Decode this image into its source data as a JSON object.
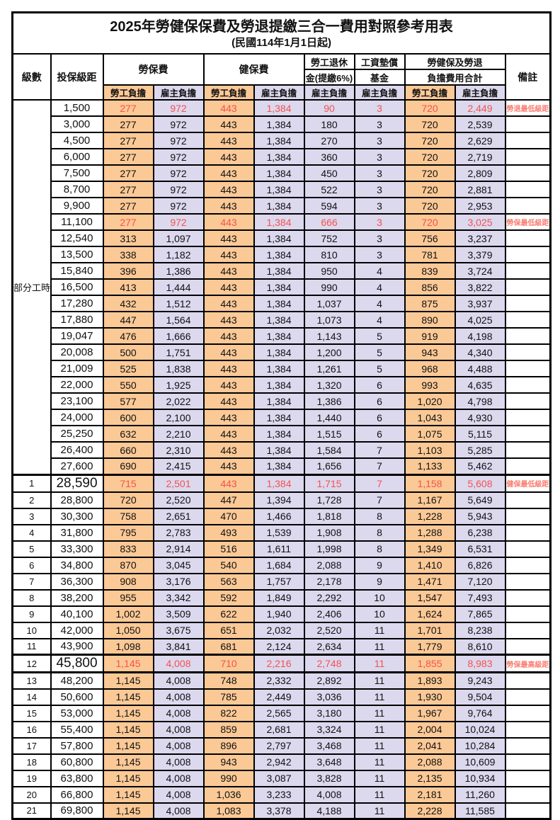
{
  "title": "2025年勞健保保費及勞退提繳三合一費用對照參考用表",
  "subtitle": "(民國114年1月1日起)",
  "colors": {
    "employee_bg": "#fbc996",
    "employer_bg": "#dcd8ee",
    "highlight_red": "#f4524d",
    "remark_red": "#f97e72"
  },
  "header": {
    "level": "級數",
    "bracket": "投保級距",
    "labor": "勞保費",
    "health": "健保費",
    "pension_line1": "勞工退休",
    "pension_line2": "金(提繳6%)",
    "wage_line1": "工資墊償",
    "wage_line2": "基金",
    "total_line1": "勞健保及勞退",
    "total_line2": "負擔費用合計",
    "employee": "勞工負擔",
    "employer": "雇主負擔",
    "remark": "備註"
  },
  "part_time": {
    "label": "部分工時",
    "span": 23
  },
  "rows": [
    {
      "level": "",
      "bracket": "1,500",
      "labor_emp": "277",
      "labor_er": "972",
      "health_emp": "443",
      "health_er": "1,384",
      "pension_er": "90",
      "wage_fund_er": "3",
      "total_emp": "720",
      "total_er": "2,449",
      "remark": "勞退最低級距",
      "highlight": true,
      "big": false,
      "sep": false,
      "sepb": false
    },
    {
      "level": "",
      "bracket": "3,000",
      "labor_emp": "277",
      "labor_er": "972",
      "health_emp": "443",
      "health_er": "1,384",
      "pension_er": "180",
      "wage_fund_er": "3",
      "total_emp": "720",
      "total_er": "2,539",
      "remark": "",
      "highlight": false,
      "big": false,
      "sep": false,
      "sepb": false
    },
    {
      "level": "",
      "bracket": "4,500",
      "labor_emp": "277",
      "labor_er": "972",
      "health_emp": "443",
      "health_er": "1,384",
      "pension_er": "270",
      "wage_fund_er": "3",
      "total_emp": "720",
      "total_er": "2,629",
      "remark": "",
      "highlight": false,
      "big": false,
      "sep": false,
      "sepb": false
    },
    {
      "level": "",
      "bracket": "6,000",
      "labor_emp": "277",
      "labor_er": "972",
      "health_emp": "443",
      "health_er": "1,384",
      "pension_er": "360",
      "wage_fund_er": "3",
      "total_emp": "720",
      "total_er": "2,719",
      "remark": "",
      "highlight": false,
      "big": false,
      "sep": false,
      "sepb": false
    },
    {
      "level": "",
      "bracket": "7,500",
      "labor_emp": "277",
      "labor_er": "972",
      "health_emp": "443",
      "health_er": "1,384",
      "pension_er": "450",
      "wage_fund_er": "3",
      "total_emp": "720",
      "total_er": "2,809",
      "remark": "",
      "highlight": false,
      "big": false,
      "sep": false,
      "sepb": false
    },
    {
      "level": "",
      "bracket": "8,700",
      "labor_emp": "277",
      "labor_er": "972",
      "health_emp": "443",
      "health_er": "1,384",
      "pension_er": "522",
      "wage_fund_er": "3",
      "total_emp": "720",
      "total_er": "2,881",
      "remark": "",
      "highlight": false,
      "big": false,
      "sep": false,
      "sepb": false
    },
    {
      "level": "",
      "bracket": "9,900",
      "labor_emp": "277",
      "labor_er": "972",
      "health_emp": "443",
      "health_er": "1,384",
      "pension_er": "594",
      "wage_fund_er": "3",
      "total_emp": "720",
      "total_er": "2,953",
      "remark": "",
      "highlight": false,
      "big": false,
      "sep": false,
      "sepb": false
    },
    {
      "level": "",
      "bracket": "11,100",
      "labor_emp": "277",
      "labor_er": "972",
      "health_emp": "443",
      "health_er": "1,384",
      "pension_er": "666",
      "wage_fund_er": "3",
      "total_emp": "720",
      "total_er": "3,025",
      "remark": "勞保最低級距",
      "highlight": true,
      "big": false,
      "sep": false,
      "sepb": false
    },
    {
      "level": "",
      "bracket": "12,540",
      "labor_emp": "313",
      "labor_er": "1,097",
      "health_emp": "443",
      "health_er": "1,384",
      "pension_er": "752",
      "wage_fund_er": "3",
      "total_emp": "756",
      "total_er": "3,237",
      "remark": "",
      "highlight": false,
      "big": false,
      "sep": false,
      "sepb": false
    },
    {
      "level": "",
      "bracket": "13,500",
      "labor_emp": "338",
      "labor_er": "1,182",
      "health_emp": "443",
      "health_er": "1,384",
      "pension_er": "810",
      "wage_fund_er": "3",
      "total_emp": "781",
      "total_er": "3,379",
      "remark": "",
      "highlight": false,
      "big": false,
      "sep": false,
      "sepb": false
    },
    {
      "level": "",
      "bracket": "15,840",
      "labor_emp": "396",
      "labor_er": "1,386",
      "health_emp": "443",
      "health_er": "1,384",
      "pension_er": "950",
      "wage_fund_er": "4",
      "total_emp": "839",
      "total_er": "3,724",
      "remark": "",
      "highlight": false,
      "big": false,
      "sep": false,
      "sepb": false
    },
    {
      "level": "",
      "bracket": "16,500",
      "labor_emp": "413",
      "labor_er": "1,444",
      "health_emp": "443",
      "health_er": "1,384",
      "pension_er": "990",
      "wage_fund_er": "4",
      "total_emp": "856",
      "total_er": "3,822",
      "remark": "",
      "highlight": false,
      "big": false,
      "sep": false,
      "sepb": false
    },
    {
      "level": "",
      "bracket": "17,280",
      "labor_emp": "432",
      "labor_er": "1,512",
      "health_emp": "443",
      "health_er": "1,384",
      "pension_er": "1,037",
      "wage_fund_er": "4",
      "total_emp": "875",
      "total_er": "3,937",
      "remark": "",
      "highlight": false,
      "big": false,
      "sep": false,
      "sepb": false
    },
    {
      "level": "",
      "bracket": "17,880",
      "labor_emp": "447",
      "labor_er": "1,564",
      "health_emp": "443",
      "health_er": "1,384",
      "pension_er": "1,073",
      "wage_fund_er": "4",
      "total_emp": "890",
      "total_er": "4,025",
      "remark": "",
      "highlight": false,
      "big": false,
      "sep": false,
      "sepb": false
    },
    {
      "level": "",
      "bracket": "19,047",
      "labor_emp": "476",
      "labor_er": "1,666",
      "health_emp": "443",
      "health_er": "1,384",
      "pension_er": "1,143",
      "wage_fund_er": "5",
      "total_emp": "919",
      "total_er": "4,198",
      "remark": "",
      "highlight": false,
      "big": false,
      "sep": false,
      "sepb": false
    },
    {
      "level": "",
      "bracket": "20,008",
      "labor_emp": "500",
      "labor_er": "1,751",
      "health_emp": "443",
      "health_er": "1,384",
      "pension_er": "1,200",
      "wage_fund_er": "5",
      "total_emp": "943",
      "total_er": "4,340",
      "remark": "",
      "highlight": false,
      "big": false,
      "sep": false,
      "sepb": false
    },
    {
      "level": "",
      "bracket": "21,009",
      "labor_emp": "525",
      "labor_er": "1,838",
      "health_emp": "443",
      "health_er": "1,384",
      "pension_er": "1,261",
      "wage_fund_er": "5",
      "total_emp": "968",
      "total_er": "4,488",
      "remark": "",
      "highlight": false,
      "big": false,
      "sep": false,
      "sepb": false
    },
    {
      "level": "",
      "bracket": "22,000",
      "labor_emp": "550",
      "labor_er": "1,925",
      "health_emp": "443",
      "health_er": "1,384",
      "pension_er": "1,320",
      "wage_fund_er": "6",
      "total_emp": "993",
      "total_er": "4,635",
      "remark": "",
      "highlight": false,
      "big": false,
      "sep": false,
      "sepb": false
    },
    {
      "level": "",
      "bracket": "23,100",
      "labor_emp": "577",
      "labor_er": "2,022",
      "health_emp": "443",
      "health_er": "1,384",
      "pension_er": "1,386",
      "wage_fund_er": "6",
      "total_emp": "1,020",
      "total_er": "4,798",
      "remark": "",
      "highlight": false,
      "big": false,
      "sep": false,
      "sepb": false
    },
    {
      "level": "",
      "bracket": "24,000",
      "labor_emp": "600",
      "labor_er": "2,100",
      "health_emp": "443",
      "health_er": "1,384",
      "pension_er": "1,440",
      "wage_fund_er": "6",
      "total_emp": "1,043",
      "total_er": "4,930",
      "remark": "",
      "highlight": false,
      "big": false,
      "sep": false,
      "sepb": false
    },
    {
      "level": "",
      "bracket": "25,250",
      "labor_emp": "632",
      "labor_er": "2,210",
      "health_emp": "443",
      "health_er": "1,384",
      "pension_er": "1,515",
      "wage_fund_er": "6",
      "total_emp": "1,075",
      "total_er": "5,115",
      "remark": "",
      "highlight": false,
      "big": false,
      "sep": false,
      "sepb": false
    },
    {
      "level": "",
      "bracket": "26,400",
      "labor_emp": "660",
      "labor_er": "2,310",
      "health_emp": "443",
      "health_er": "1,384",
      "pension_er": "1,584",
      "wage_fund_er": "7",
      "total_emp": "1,103",
      "total_er": "5,285",
      "remark": "",
      "highlight": false,
      "big": false,
      "sep": false,
      "sepb": false
    },
    {
      "level": "",
      "bracket": "27,600",
      "labor_emp": "690",
      "labor_er": "2,415",
      "health_emp": "443",
      "health_er": "1,384",
      "pension_er": "1,656",
      "wage_fund_er": "7",
      "total_emp": "1,133",
      "total_er": "5,462",
      "remark": "",
      "highlight": false,
      "big": false,
      "sep": false,
      "sepb": false
    },
    {
      "level": "1",
      "bracket": "28,590",
      "labor_emp": "715",
      "labor_er": "2,501",
      "health_emp": "443",
      "health_er": "1,384",
      "pension_er": "1,715",
      "wage_fund_er": "7",
      "total_emp": "1,158",
      "total_er": "5,608",
      "remark": "健保最低級距",
      "highlight": true,
      "big": true,
      "sep": true,
      "sepb": false
    },
    {
      "level": "2",
      "bracket": "28,800",
      "labor_emp": "720",
      "labor_er": "2,520",
      "health_emp": "447",
      "health_er": "1,394",
      "pension_er": "1,728",
      "wage_fund_er": "7",
      "total_emp": "1,167",
      "total_er": "5,649",
      "remark": "",
      "highlight": false,
      "big": false,
      "sep": false,
      "sepb": false
    },
    {
      "level": "3",
      "bracket": "30,300",
      "labor_emp": "758",
      "labor_er": "2,651",
      "health_emp": "470",
      "health_er": "1,466",
      "pension_er": "1,818",
      "wage_fund_er": "8",
      "total_emp": "1,228",
      "total_er": "5,943",
      "remark": "",
      "highlight": false,
      "big": false,
      "sep": false,
      "sepb": false
    },
    {
      "level": "4",
      "bracket": "31,800",
      "labor_emp": "795",
      "labor_er": "2,783",
      "health_emp": "493",
      "health_er": "1,539",
      "pension_er": "1,908",
      "wage_fund_er": "8",
      "total_emp": "1,288",
      "total_er": "6,238",
      "remark": "",
      "highlight": false,
      "big": false,
      "sep": false,
      "sepb": false
    },
    {
      "level": "5",
      "bracket": "33,300",
      "labor_emp": "833",
      "labor_er": "2,914",
      "health_emp": "516",
      "health_er": "1,611",
      "pension_er": "1,998",
      "wage_fund_er": "8",
      "total_emp": "1,349",
      "total_er": "6,531",
      "remark": "",
      "highlight": false,
      "big": false,
      "sep": false,
      "sepb": false
    },
    {
      "level": "6",
      "bracket": "34,800",
      "labor_emp": "870",
      "labor_er": "3,045",
      "health_emp": "540",
      "health_er": "1,684",
      "pension_er": "2,088",
      "wage_fund_er": "9",
      "total_emp": "1,410",
      "total_er": "6,826",
      "remark": "",
      "highlight": false,
      "big": false,
      "sep": false,
      "sepb": false
    },
    {
      "level": "7",
      "bracket": "36,300",
      "labor_emp": "908",
      "labor_er": "3,176",
      "health_emp": "563",
      "health_er": "1,757",
      "pension_er": "2,178",
      "wage_fund_er": "9",
      "total_emp": "1,471",
      "total_er": "7,120",
      "remark": "",
      "highlight": false,
      "big": false,
      "sep": false,
      "sepb": false
    },
    {
      "level": "8",
      "bracket": "38,200",
      "labor_emp": "955",
      "labor_er": "3,342",
      "health_emp": "592",
      "health_er": "1,849",
      "pension_er": "2,292",
      "wage_fund_er": "10",
      "total_emp": "1,547",
      "total_er": "7,493",
      "remark": "",
      "highlight": false,
      "big": false,
      "sep": false,
      "sepb": false
    },
    {
      "level": "9",
      "bracket": "40,100",
      "labor_emp": "1,002",
      "labor_er": "3,509",
      "health_emp": "622",
      "health_er": "1,940",
      "pension_er": "2,406",
      "wage_fund_er": "10",
      "total_emp": "1,624",
      "total_er": "7,865",
      "remark": "",
      "highlight": false,
      "big": false,
      "sep": false,
      "sepb": false
    },
    {
      "level": "10",
      "bracket": "42,000",
      "labor_emp": "1,050",
      "labor_er": "3,675",
      "health_emp": "651",
      "health_er": "2,032",
      "pension_er": "2,520",
      "wage_fund_er": "11",
      "total_emp": "1,701",
      "total_er": "8,238",
      "remark": "",
      "highlight": false,
      "big": false,
      "sep": false,
      "sepb": false
    },
    {
      "level": "11",
      "bracket": "43,900",
      "labor_emp": "1,098",
      "labor_er": "3,841",
      "health_emp": "681",
      "health_er": "2,124",
      "pension_er": "2,634",
      "wage_fund_er": "11",
      "total_emp": "1,779",
      "total_er": "8,610",
      "remark": "",
      "highlight": false,
      "big": false,
      "sep": false,
      "sepb": false
    },
    {
      "level": "12",
      "bracket": "45,800",
      "labor_emp": "1,145",
      "labor_er": "4,008",
      "health_emp": "710",
      "health_er": "2,216",
      "pension_er": "2,748",
      "wage_fund_er": "11",
      "total_emp": "1,855",
      "total_er": "8,983",
      "remark": "勞保最高級距",
      "highlight": true,
      "big": true,
      "sep": true,
      "sepb": true
    },
    {
      "level": "13",
      "bracket": "48,200",
      "labor_emp": "1,145",
      "labor_er": "4,008",
      "health_emp": "748",
      "health_er": "2,332",
      "pension_er": "2,892",
      "wage_fund_er": "11",
      "total_emp": "1,893",
      "total_er": "9,243",
      "remark": "",
      "highlight": false,
      "big": false,
      "sep": false,
      "sepb": false
    },
    {
      "level": "14",
      "bracket": "50,600",
      "labor_emp": "1,145",
      "labor_er": "4,008",
      "health_emp": "785",
      "health_er": "2,449",
      "pension_er": "3,036",
      "wage_fund_er": "11",
      "total_emp": "1,930",
      "total_er": "9,504",
      "remark": "",
      "highlight": false,
      "big": false,
      "sep": false,
      "sepb": false
    },
    {
      "level": "15",
      "bracket": "53,000",
      "labor_emp": "1,145",
      "labor_er": "4,008",
      "health_emp": "822",
      "health_er": "2,565",
      "pension_er": "3,180",
      "wage_fund_er": "11",
      "total_emp": "1,967",
      "total_er": "9,764",
      "remark": "",
      "highlight": false,
      "big": false,
      "sep": false,
      "sepb": false
    },
    {
      "level": "16",
      "bracket": "55,400",
      "labor_emp": "1,145",
      "labor_er": "4,008",
      "health_emp": "859",
      "health_er": "2,681",
      "pension_er": "3,324",
      "wage_fund_er": "11",
      "total_emp": "2,004",
      "total_er": "10,024",
      "remark": "",
      "highlight": false,
      "big": false,
      "sep": false,
      "sepb": false
    },
    {
      "level": "17",
      "bracket": "57,800",
      "labor_emp": "1,145",
      "labor_er": "4,008",
      "health_emp": "896",
      "health_er": "2,797",
      "pension_er": "3,468",
      "wage_fund_er": "11",
      "total_emp": "2,041",
      "total_er": "10,284",
      "remark": "",
      "highlight": false,
      "big": false,
      "sep": false,
      "sepb": false
    },
    {
      "level": "18",
      "bracket": "60,800",
      "labor_emp": "1,145",
      "labor_er": "4,008",
      "health_emp": "943",
      "health_er": "2,942",
      "pension_er": "3,648",
      "wage_fund_er": "11",
      "total_emp": "2,088",
      "total_er": "10,609",
      "remark": "",
      "highlight": false,
      "big": false,
      "sep": false,
      "sepb": false
    },
    {
      "level": "19",
      "bracket": "63,800",
      "labor_emp": "1,145",
      "labor_er": "4,008",
      "health_emp": "990",
      "health_er": "3,087",
      "pension_er": "3,828",
      "wage_fund_er": "11",
      "total_emp": "2,135",
      "total_er": "10,934",
      "remark": "",
      "highlight": false,
      "big": false,
      "sep": false,
      "sepb": false
    },
    {
      "level": "20",
      "bracket": "66,800",
      "labor_emp": "1,145",
      "labor_er": "4,008",
      "health_emp": "1,036",
      "health_er": "3,233",
      "pension_er": "4,008",
      "wage_fund_er": "11",
      "total_emp": "2,181",
      "total_er": "11,260",
      "remark": "",
      "highlight": false,
      "big": false,
      "sep": false,
      "sepb": false
    },
    {
      "level": "21",
      "bracket": "69,800",
      "labor_emp": "1,145",
      "labor_er": "4,008",
      "health_emp": "1,083",
      "health_er": "3,378",
      "pension_er": "4,188",
      "wage_fund_er": "11",
      "total_emp": "2,228",
      "total_er": "11,585",
      "remark": "",
      "highlight": false,
      "big": false,
      "sep": false,
      "sepb": false
    }
  ]
}
